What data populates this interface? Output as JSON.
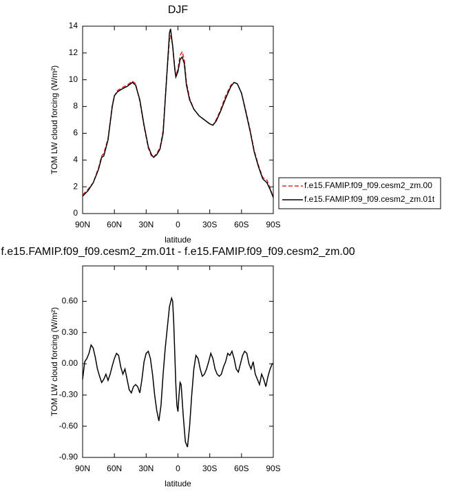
{
  "chart_data": [
    {
      "type": "line",
      "title": "DJF",
      "xlabel": "latitude",
      "ylabel": "TOM LW cloud forcing (W/m²)",
      "xlim": [
        90,
        -90
      ],
      "ylim": [
        0,
        14
      ],
      "xticks": [
        {
          "value": 90,
          "label": "90N"
        },
        {
          "value": 60,
          "label": "60N"
        },
        {
          "value": 30,
          "label": "30N"
        },
        0,
        {
          "value": -30,
          "label": "30S"
        },
        {
          "value": -60,
          "label": "60S"
        },
        {
          "value": -90,
          "label": "90S"
        }
      ],
      "yticks": [
        0,
        2,
        4,
        6,
        8,
        10,
        12,
        14
      ],
      "legend": "right",
      "x": [
        90,
        85,
        80,
        75,
        72,
        70,
        66,
        62,
        60,
        57,
        53,
        48,
        43,
        40,
        36,
        32,
        28,
        25,
        23,
        20,
        17,
        14,
        12,
        10,
        8,
        7,
        5,
        3,
        2,
        0,
        -2,
        -4,
        -6,
        -8,
        -11,
        -15,
        -20,
        -25,
        -30,
        -33,
        -36,
        -40,
        -45,
        -50,
        -53,
        -56,
        -60,
        -64,
        -68,
        -72,
        -76,
        -80,
        -84,
        -87,
        -90
      ],
      "series": [
        {
          "name": "f.e15.FAMIP.f09_f09.cesm2_zm.00",
          "color": "#e8231f",
          "dash": true,
          "values": [
            1.4,
            1.8,
            2.3,
            3.4,
            4.3,
            4.5,
            5.6,
            8.1,
            8.8,
            9.2,
            9.4,
            9.6,
            9.9,
            9.7,
            8.4,
            6.5,
            4.9,
            4.3,
            4.2,
            4.5,
            4.9,
            6.2,
            8.6,
            10.9,
            13.0,
            13.3,
            12.6,
            10.9,
            10.3,
            10.8,
            11.8,
            12.1,
            11.5,
            9.8,
            8.6,
            7.8,
            7.3,
            7.0,
            6.7,
            6.6,
            7.0,
            7.7,
            8.8,
            9.6,
            9.8,
            9.7,
            9.0,
            7.7,
            6.3,
            4.7,
            3.6,
            2.7,
            2.5,
            1.9,
            1.2
          ]
        },
        {
          "name": "f.e15.FAMIP.f09_f09.cesm2_zm.01t",
          "color": "#000000",
          "dash": false,
          "values": [
            1.3,
            1.7,
            2.3,
            3.3,
            4.2,
            4.3,
            5.5,
            8.0,
            8.8,
            9.1,
            9.3,
            9.5,
            9.8,
            9.6,
            8.5,
            6.6,
            5.0,
            4.4,
            4.2,
            4.4,
            4.8,
            6.0,
            8.5,
            11.0,
            13.5,
            13.8,
            12.5,
            10.8,
            10.2,
            10.6,
            11.5,
            11.7,
            11.2,
            9.6,
            8.5,
            7.8,
            7.3,
            7.0,
            6.7,
            6.6,
            6.9,
            7.6,
            8.6,
            9.5,
            9.8,
            9.7,
            9.0,
            7.6,
            6.2,
            4.6,
            3.5,
            2.6,
            2.3,
            1.8,
            1.2
          ]
        }
      ]
    },
    {
      "type": "line",
      "title": "f.e15.FAMIP.f09_f09.cesm2_zm.01t - f.e15.FAMIP.f09_f09.cesm2_zm.00",
      "xlabel": "latitude",
      "ylabel": "TOM LW cloud forcing (W/m²)",
      "xlim": [
        90,
        -90
      ],
      "ylim": [
        -0.9,
        0.94
      ],
      "xticks": [
        {
          "value": 90,
          "label": "90N"
        },
        {
          "value": 60,
          "label": "60N"
        },
        {
          "value": 30,
          "label": "30N"
        },
        0,
        {
          "value": -30,
          "label": "30S"
        },
        {
          "value": -60,
          "label": "60S"
        },
        {
          "value": -90,
          "label": "90S"
        }
      ],
      "yticks": [
        {
          "value": 0.6,
          "label": "0.60"
        },
        {
          "value": 0.3,
          "label": "0.30"
        },
        {
          "value": 0,
          "label": "0.00"
        },
        {
          "value": -0.3,
          "label": "-0.30"
        },
        {
          "value": -0.6,
          "label": "-0.60"
        },
        {
          "value": -0.9,
          "label": "-0.90"
        }
      ],
      "x": [
        90,
        88,
        86,
        84,
        82,
        80,
        78,
        76,
        74,
        72,
        70,
        68,
        66,
        64,
        62,
        60,
        58,
        56,
        54,
        52,
        50,
        48,
        46,
        44,
        42,
        40,
        38,
        36,
        34,
        32,
        30,
        28,
        26,
        24,
        22,
        20,
        18,
        16,
        14,
        12,
        10,
        8,
        6,
        5,
        4,
        3,
        2,
        1,
        0,
        -1,
        -2,
        -3,
        -5,
        -7,
        -9,
        -11,
        -13,
        -15,
        -17,
        -19,
        -21,
        -23,
        -25,
        -27,
        -29,
        -31,
        -33,
        -35,
        -37,
        -39,
        -41,
        -43,
        -45,
        -47,
        -49,
        -51,
        -53,
        -55,
        -57,
        -59,
        -61,
        -63,
        -65,
        -67,
        -69,
        -71,
        -73,
        -75,
        -77,
        -79,
        -81,
        -83,
        -85,
        -87,
        -89,
        -90
      ],
      "series": [
        {
          "color": "#000000",
          "dash": false,
          "values": [
            -0.15,
            0.02,
            0.05,
            0.1,
            0.18,
            0.15,
            0.06,
            -0.05,
            -0.12,
            -0.18,
            -0.15,
            -0.1,
            -0.16,
            -0.1,
            -0.02,
            0.05,
            0.1,
            0.08,
            -0.03,
            -0.1,
            -0.05,
            -0.15,
            -0.25,
            -0.28,
            -0.22,
            -0.2,
            -0.22,
            -0.28,
            -0.15,
            0.02,
            0.1,
            0.12,
            0.05,
            -0.1,
            -0.3,
            -0.45,
            -0.55,
            -0.4,
            -0.1,
            0.15,
            0.35,
            0.55,
            0.63,
            0.6,
            0.4,
            0.1,
            -0.2,
            -0.4,
            -0.46,
            -0.3,
            -0.18,
            -0.2,
            -0.5,
            -0.75,
            -0.8,
            -0.6,
            -0.3,
            -0.05,
            0.08,
            0.05,
            -0.05,
            -0.12,
            -0.1,
            -0.05,
            0.02,
            0.1,
            0.05,
            -0.05,
            -0.1,
            -0.12,
            -0.1,
            -0.03,
            0.02,
            0.1,
            0.08,
            0.12,
            0.05,
            -0.05,
            -0.08,
            0.0,
            0.08,
            0.12,
            0.1,
            0.0,
            -0.05,
            0.02,
            -0.1,
            -0.15,
            -0.2,
            -0.1,
            -0.15,
            -0.22,
            -0.12,
            -0.05,
            0.0,
            0.0
          ]
        }
      ]
    }
  ]
}
